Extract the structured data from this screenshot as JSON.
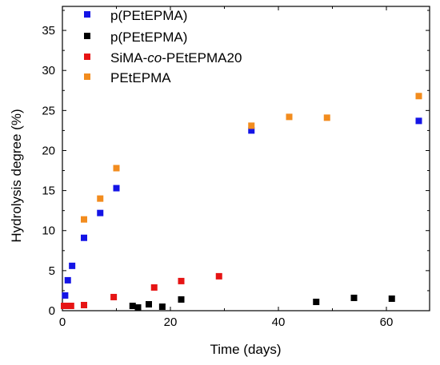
{
  "chart_data": {
    "type": "scatter",
    "xlabel": "Time (days)",
    "ylabel": "Hydrolysis degree (%)",
    "xlim": [
      0,
      68
    ],
    "ylim": [
      0,
      38
    ],
    "x_ticks": [
      0,
      20,
      40,
      60
    ],
    "y_ticks": [
      0,
      5,
      10,
      15,
      20,
      25,
      30,
      35
    ],
    "grid": false,
    "legend_position": "top-left",
    "series": [
      {
        "name": "p(PEtEPMA)",
        "color": "#1414e6",
        "points": [
          [
            0.5,
            1.9
          ],
          [
            1,
            3.8
          ],
          [
            1.8,
            5.6
          ],
          [
            4,
            9.1
          ],
          [
            7,
            12.2
          ],
          [
            10,
            15.3
          ],
          [
            35,
            22.5
          ],
          [
            66,
            23.7
          ]
        ]
      },
      {
        "name": "p(PEtEPMA)",
        "color": "#000000",
        "points": [
          [
            13,
            0.6
          ],
          [
            14,
            0.4
          ],
          [
            16,
            0.8
          ],
          [
            18.5,
            0.5
          ],
          [
            22,
            1.4
          ],
          [
            47,
            1.1
          ],
          [
            54,
            1.6
          ],
          [
            61,
            1.5
          ]
        ]
      },
      {
        "name": "SiMA-co-PEtEPMA20",
        "name_parts": [
          "SiMA-",
          "co",
          "-PEtEPMA20"
        ],
        "color": "#e61414",
        "points": [
          [
            0.3,
            0.6
          ],
          [
            0.9,
            0.6
          ],
          [
            1.6,
            0.6
          ],
          [
            4,
            0.7
          ],
          [
            9.5,
            1.7
          ],
          [
            17,
            2.9
          ],
          [
            22,
            3.7
          ],
          [
            29,
            4.3
          ]
        ]
      },
      {
        "name": "PEtEPMA",
        "color": "#f28c1e",
        "points": [
          [
            4,
            11.4
          ],
          [
            7,
            14.0
          ],
          [
            10,
            17.8
          ],
          [
            35,
            23.1
          ],
          [
            42,
            24.2
          ],
          [
            49,
            24.1
          ],
          [
            66,
            26.8
          ]
        ]
      }
    ]
  }
}
